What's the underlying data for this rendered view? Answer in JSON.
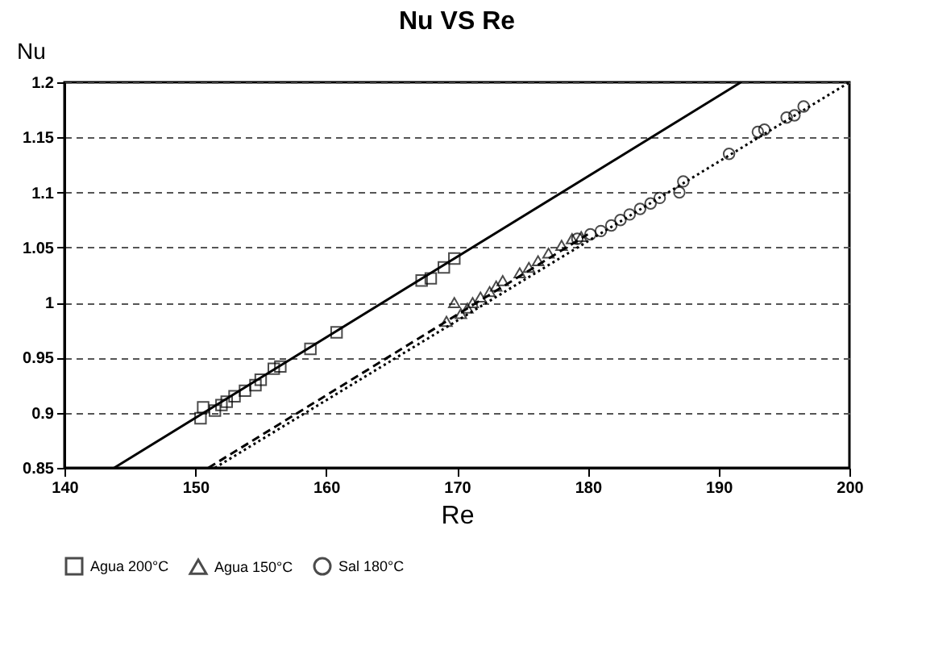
{
  "chart_data": {
    "type": "scatter",
    "title": "Nu VS Re",
    "xlabel": "Re",
    "ylabel": "Nu",
    "xlim": [
      140,
      200
    ],
    "xticks": [
      140,
      150,
      160,
      170,
      180,
      190,
      200
    ],
    "ylim": [
      0.85,
      1.2
    ],
    "yticks": [
      0.85,
      0.9,
      0.95,
      1,
      1.05,
      1.1,
      1.15,
      1.2
    ],
    "grid": "y",
    "legend": "bottom",
    "series": [
      {
        "name": "Agua 200°C",
        "marker": "square",
        "color": "#000000",
        "x": [
          150.4,
          150.6,
          151.5,
          152,
          152.4,
          153,
          153.8,
          154.6,
          155,
          156,
          156.5,
          158.8,
          160.8,
          167.3,
          168,
          169,
          169.8
        ],
        "values": [
          0.895,
          0.905,
          0.902,
          0.907,
          0.91,
          0.915,
          0.92,
          0.925,
          0.93,
          0.94,
          0.942,
          0.958,
          0.973,
          1.02,
          1.022,
          1.032,
          1.04
        ]
      },
      {
        "name": "Agua 150°C",
        "marker": "triangle",
        "color": "#000000",
        "x": [
          169.2,
          169.8,
          170.3,
          170.8,
          171.2,
          171.8,
          172.5,
          173,
          173.5,
          174.8,
          175.5,
          176.2,
          177,
          178,
          178.8,
          179.5
        ],
        "values": [
          0.983,
          1.0,
          0.99,
          0.995,
          1.0,
          1.005,
          1.01,
          1.015,
          1.02,
          1.027,
          1.032,
          1.038,
          1.045,
          1.052,
          1.058,
          1.06
        ]
      },
      {
        "name": "Sal 180°C",
        "marker": "circle",
        "color": "#000000",
        "x": [
          179.2,
          180.2,
          181,
          181.8,
          182.5,
          183.2,
          184,
          184.8,
          185.5,
          187,
          187.3,
          190.8,
          193,
          193.5,
          195.2,
          195.8,
          196.5
        ],
        "values": [
          1.058,
          1.062,
          1.065,
          1.07,
          1.075,
          1.08,
          1.085,
          1.09,
          1.095,
          1.1,
          1.11,
          1.135,
          1.155,
          1.157,
          1.168,
          1.17,
          1.178
        ]
      },
      {
        "type": "line",
        "line_style": "solid",
        "color": "#000000",
        "x": [
          143.8,
          191.7
        ],
        "values": [
          0.85,
          1.2
        ]
      },
      {
        "type": "line",
        "line_style": "dashed",
        "color": "#000000",
        "x": [
          151,
          180
        ],
        "values": [
          0.85,
          1.062
        ]
      },
      {
        "type": "line",
        "line_style": "dotted",
        "color": "#000000",
        "x": [
          151.5,
          200
        ],
        "values": [
          0.85,
          1.2
        ]
      }
    ]
  }
}
